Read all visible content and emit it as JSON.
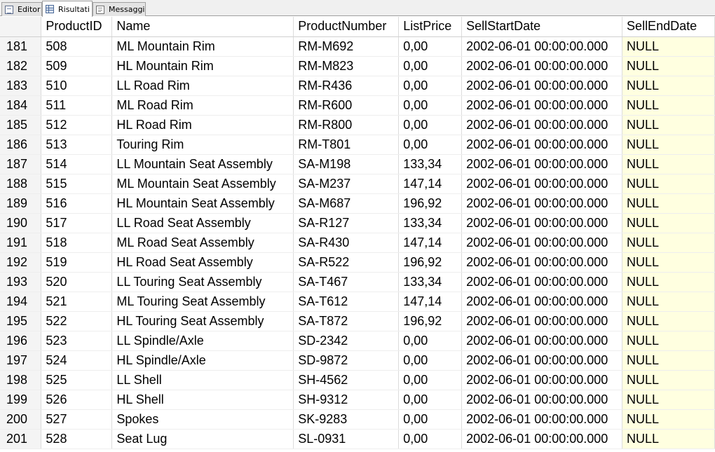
{
  "tabs": [
    {
      "label": "Editor",
      "icon": "editor-icon",
      "active": false
    },
    {
      "label": "Risultati",
      "icon": "grid-icon",
      "active": true
    },
    {
      "label": "Messaggi",
      "icon": "messages-icon",
      "active": false
    }
  ],
  "grid": {
    "null_cell_color": "#ffffe0",
    "columns": [
      "ProductID",
      "Name",
      "ProductNumber",
      "ListPrice",
      "SellStartDate",
      "SellEndDate"
    ],
    "rows": [
      {
        "row": "181",
        "cells": [
          "508",
          "ML Mountain Rim",
          "RM-M692",
          "0,00",
          "2002-06-01 00:00:00.000",
          "NULL"
        ]
      },
      {
        "row": "182",
        "cells": [
          "509",
          "HL Mountain Rim",
          "RM-M823",
          "0,00",
          "2002-06-01 00:00:00.000",
          "NULL"
        ]
      },
      {
        "row": "183",
        "cells": [
          "510",
          "LL Road Rim",
          "RM-R436",
          "0,00",
          "2002-06-01 00:00:00.000",
          "NULL"
        ]
      },
      {
        "row": "184",
        "cells": [
          "511",
          "ML Road Rim",
          "RM-R600",
          "0,00",
          "2002-06-01 00:00:00.000",
          "NULL"
        ]
      },
      {
        "row": "185",
        "cells": [
          "512",
          "HL Road Rim",
          "RM-R800",
          "0,00",
          "2002-06-01 00:00:00.000",
          "NULL"
        ]
      },
      {
        "row": "186",
        "cells": [
          "513",
          "Touring Rim",
          "RM-T801",
          "0,00",
          "2002-06-01 00:00:00.000",
          "NULL"
        ]
      },
      {
        "row": "187",
        "cells": [
          "514",
          "LL Mountain Seat Assembly",
          "SA-M198",
          "133,34",
          "2002-06-01 00:00:00.000",
          "NULL"
        ]
      },
      {
        "row": "188",
        "cells": [
          "515",
          "ML Mountain Seat Assembly",
          "SA-M237",
          "147,14",
          "2002-06-01 00:00:00.000",
          "NULL"
        ]
      },
      {
        "row": "189",
        "cells": [
          "516",
          "HL Mountain Seat Assembly",
          "SA-M687",
          "196,92",
          "2002-06-01 00:00:00.000",
          "NULL"
        ]
      },
      {
        "row": "190",
        "cells": [
          "517",
          "LL Road Seat Assembly",
          "SA-R127",
          "133,34",
          "2002-06-01 00:00:00.000",
          "NULL"
        ]
      },
      {
        "row": "191",
        "cells": [
          "518",
          "ML Road Seat Assembly",
          "SA-R430",
          "147,14",
          "2002-06-01 00:00:00.000",
          "NULL"
        ]
      },
      {
        "row": "192",
        "cells": [
          "519",
          "HL Road Seat Assembly",
          "SA-R522",
          "196,92",
          "2002-06-01 00:00:00.000",
          "NULL"
        ]
      },
      {
        "row": "193",
        "cells": [
          "520",
          "LL Touring Seat Assembly",
          "SA-T467",
          "133,34",
          "2002-06-01 00:00:00.000",
          "NULL"
        ]
      },
      {
        "row": "194",
        "cells": [
          "521",
          "ML Touring Seat Assembly",
          "SA-T612",
          "147,14",
          "2002-06-01 00:00:00.000",
          "NULL"
        ]
      },
      {
        "row": "195",
        "cells": [
          "522",
          "HL Touring Seat Assembly",
          "SA-T872",
          "196,92",
          "2002-06-01 00:00:00.000",
          "NULL"
        ]
      },
      {
        "row": "196",
        "cells": [
          "523",
          "LL Spindle/Axle",
          "SD-2342",
          "0,00",
          "2002-06-01 00:00:00.000",
          "NULL"
        ]
      },
      {
        "row": "197",
        "cells": [
          "524",
          "HL Spindle/Axle",
          "SD-9872",
          "0,00",
          "2002-06-01 00:00:00.000",
          "NULL"
        ]
      },
      {
        "row": "198",
        "cells": [
          "525",
          "LL Shell",
          "SH-4562",
          "0,00",
          "2002-06-01 00:00:00.000",
          "NULL"
        ]
      },
      {
        "row": "199",
        "cells": [
          "526",
          "HL Shell",
          "SH-9312",
          "0,00",
          "2002-06-01 00:00:00.000",
          "NULL"
        ]
      },
      {
        "row": "200",
        "cells": [
          "527",
          "Spokes",
          "SK-9283",
          "0,00",
          "2002-06-01 00:00:00.000",
          "NULL"
        ]
      },
      {
        "row": "201",
        "cells": [
          "528",
          "Seat Lug",
          "SL-0931",
          "0,00",
          "2002-06-01 00:00:00.000",
          "NULL"
        ]
      }
    ]
  }
}
